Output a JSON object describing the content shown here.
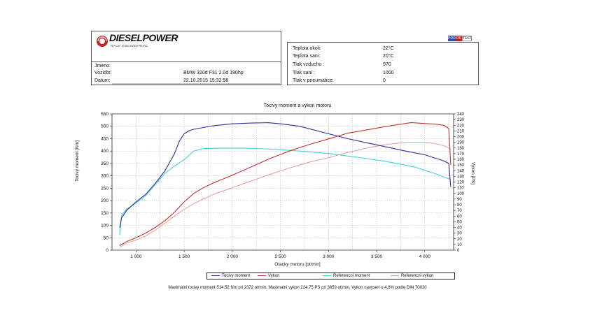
{
  "header": {
    "logo_text": "DIESELPOWER",
    "logo_subtext": "RACE ENGINEERING",
    "badge": [
      "PROTO",
      "DR",
      "TEST"
    ]
  },
  "vehicle_info": [
    {
      "label": "Jmeno:",
      "value": ""
    },
    {
      "label": "Vozidlo:",
      "value": "BMW 320d F31 2.0d 190hp"
    },
    {
      "label": "Datum:",
      "value": "22.10.2015 15:32:58"
    }
  ],
  "ambient_info": [
    {
      "label": "Teplota okoli:",
      "value": "22°C"
    },
    {
      "label": "Teplota sani:",
      "value": "20°C"
    },
    {
      "label": "Tlak vzduchu :",
      "value": "970"
    },
    {
      "label": "Tlak sani :",
      "value": "1000"
    },
    {
      "label": "Tlak v pneumatice:",
      "value": "0"
    }
  ],
  "footer": {
    "summary": "Maximalni tocivy moment 514,52 Nm pri 2372 ot/min,  Maximalni vykon 224,75 PS pri 3859 ot/min,  Vykon navysen o 4,8% podle DIN 70020"
  },
  "colors": {
    "torque": "#2a2e9a",
    "power": "#c8322e",
    "ref_torque": "#3ed4dc",
    "ref_power": "#e69a92"
  },
  "chart_data": {
    "type": "line",
    "title": "Tocivy moment a vykon motoru",
    "xlabel": "Otacky motoru [ot/min]",
    "ylabel": "Tocivy moment [Nm]",
    "y2label": "Vykon [PS]",
    "xlim": [
      750,
      4300
    ],
    "ylim": [
      0,
      550
    ],
    "y2lim": [
      0,
      240
    ],
    "xticks": [
      1000,
      1500,
      2000,
      2500,
      3000,
      3500,
      4000
    ],
    "xtick_labels": [
      "1 000",
      "1 500",
      "2 000",
      "2 500",
      "3 000",
      "3 500",
      "4 000"
    ],
    "yticks": [
      0,
      50,
      100,
      150,
      200,
      250,
      300,
      350,
      400,
      450,
      500,
      550
    ],
    "y2ticks": [
      0,
      10,
      20,
      30,
      40,
      50,
      60,
      70,
      80,
      90,
      100,
      110,
      120,
      130,
      140,
      150,
      160,
      170,
      180,
      190,
      200,
      210,
      220,
      230,
      240
    ],
    "grid": true,
    "legend_position": "bottom",
    "series": [
      {
        "name": "Tocivy moment",
        "axis": "left",
        "x": [
          830,
          850,
          900,
          1000,
          1100,
          1200,
          1300,
          1400,
          1450,
          1500,
          1550,
          1600,
          1700,
          1800,
          1900,
          2000,
          2200,
          2372,
          2500,
          2700,
          3000,
          3200,
          3500,
          3800,
          4000,
          4200,
          4250,
          4270
        ],
        "y": [
          90,
          130,
          160,
          195,
          225,
          270,
          320,
          390,
          440,
          470,
          482,
          488,
          495,
          502,
          506,
          510,
          513,
          514.5,
          510,
          500,
          470,
          450,
          425,
          400,
          385,
          360,
          350,
          255
        ]
      },
      {
        "name": "Vykon",
        "axis": "right",
        "x": [
          830,
          900,
          1000,
          1100,
          1200,
          1300,
          1400,
          1500,
          1600,
          1700,
          1800,
          2000,
          2200,
          2400,
          2600,
          2800,
          3000,
          3200,
          3400,
          3600,
          3859,
          4000,
          4100,
          4200,
          4250,
          4270
        ],
        "y": [
          8,
          15,
          22,
          30,
          40,
          52,
          67,
          85,
          100,
          110,
          118,
          132,
          147,
          162,
          175,
          186,
          196,
          206,
          212,
          218,
          224.75,
          223,
          222,
          220,
          214,
          150
        ]
      },
      {
        "name": "Referencni moment",
        "axis": "left",
        "x": [
          830,
          850,
          900,
          1000,
          1100,
          1200,
          1300,
          1400,
          1500,
          1600,
          1700,
          1900,
          2100,
          2400,
          2700,
          3000,
          3300,
          3600,
          3900,
          4100,
          4200,
          4270
        ],
        "y": [
          60,
          140,
          165,
          190,
          220,
          265,
          310,
          340,
          365,
          400,
          410,
          412,
          412,
          408,
          400,
          390,
          375,
          358,
          335,
          310,
          295,
          285
        ]
      },
      {
        "name": "Referencni vykon",
        "axis": "right",
        "x": [
          830,
          900,
          1000,
          1100,
          1200,
          1300,
          1400,
          1500,
          1600,
          1800,
          2000,
          2200,
          2400,
          2600,
          2800,
          3000,
          3200,
          3400,
          3600,
          3800,
          4000,
          4100,
          4200,
          4270
        ],
        "y": [
          5,
          12,
          18,
          25,
          35,
          48,
          60,
          72,
          82,
          98,
          110,
          122,
          134,
          145,
          155,
          163,
          172,
          180,
          186,
          190,
          190,
          188,
          184,
          178
        ]
      }
    ]
  }
}
